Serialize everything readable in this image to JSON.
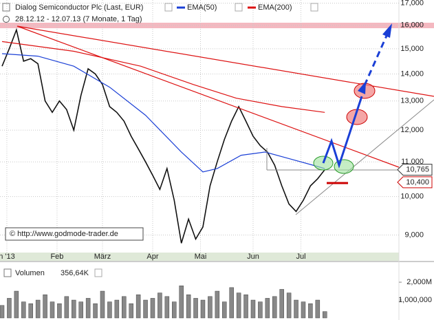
{
  "chart_data": [
    {
      "type": "line",
      "title": "Dialog Semiconductor Plc (Last, EUR)",
      "subtitle": "28.12.12 - 12.07.13 (7 Monate, 1 Tag)",
      "annotation": "© http://www.godmode-trader.de",
      "log_scale": true,
      "grid": true,
      "xlim": [
        0,
        166
      ],
      "xticks": [
        {
          "value": 2,
          "label": "n '13"
        },
        {
          "value": 23,
          "label": "Feb"
        },
        {
          "value": 42,
          "label": "März"
        },
        {
          "value": 63,
          "label": "Apr"
        },
        {
          "value": 83,
          "label": "Mai"
        },
        {
          "value": 105,
          "label": "Jun"
        },
        {
          "value": 125,
          "label": "Jul"
        }
      ],
      "ylim": [
        8.4,
        17.15
      ],
      "yticks": [
        {
          "value": 9,
          "label": "9,000"
        },
        {
          "value": 10,
          "label": "10,000"
        },
        {
          "value": 11,
          "label": "11,000"
        },
        {
          "value": 12,
          "label": "12,000"
        },
        {
          "value": 13,
          "label": "13,000"
        },
        {
          "value": 14,
          "label": "14,000"
        },
        {
          "value": 15,
          "label": "15,000"
        },
        {
          "value": 16,
          "label": "16,000"
        },
        {
          "value": 17,
          "label": "17,000"
        }
      ],
      "price_labels": [
        {
          "value": 10.765,
          "label": "10,765",
          "color": "#333333"
        },
        {
          "value": 10.4,
          "label": "10,400",
          "color": "#cc0000"
        }
      ],
      "series": [
        {
          "name": "Dialog Semiconductor Plc",
          "color": "#111111",
          "x": [
            0,
            3,
            6,
            9,
            12,
            15,
            18,
            21,
            24,
            27,
            30,
            33,
            36,
            39,
            42,
            45,
            48,
            51,
            54,
            57,
            60,
            63,
            66,
            69,
            72,
            75,
            78,
            81,
            84,
            87,
            90,
            93,
            96,
            99,
            102,
            105,
            108,
            111,
            114,
            117,
            120,
            123,
            126,
            129,
            132,
            135
          ],
          "values": [
            14.3,
            15.0,
            15.8,
            14.5,
            14.6,
            14.4,
            13.0,
            12.6,
            13.0,
            12.7,
            12.0,
            13.2,
            14.2,
            14.0,
            13.6,
            12.8,
            12.6,
            12.3,
            11.8,
            11.4,
            11.0,
            10.6,
            10.2,
            10.8,
            9.9,
            8.8,
            9.4,
            8.9,
            9.2,
            10.3,
            11.0,
            11.7,
            12.3,
            12.8,
            12.3,
            11.8,
            11.5,
            11.3,
            10.9,
            10.3,
            9.8,
            9.6,
            9.9,
            10.3,
            10.5,
            10.765
          ]
        },
        {
          "name": "EMA(50)",
          "color": "#1a3fd6",
          "x": [
            0,
            15,
            30,
            45,
            60,
            75,
            84,
            90,
            100,
            110,
            120,
            130,
            135
          ],
          "values": [
            14.8,
            14.7,
            14.3,
            13.5,
            12.5,
            11.3,
            10.7,
            10.8,
            11.2,
            11.3,
            11.1,
            10.9,
            10.8
          ]
        },
        {
          "name": "EMA(200)",
          "color": "#dd1111",
          "x": [
            0,
            30,
            58,
            80,
            98,
            117,
            135
          ],
          "values": [
            15.3,
            14.9,
            14.3,
            13.6,
            13.1,
            12.8,
            12.6
          ]
        }
      ]
    },
    {
      "type": "bar",
      "title": "Volumen",
      "subtitle": "356,64K",
      "xlim": [
        0,
        166
      ],
      "ylim": [
        0,
        2580000
      ],
      "yticks": [
        {
          "value": 2000000,
          "label": "2,000M"
        },
        {
          "value": 1000000,
          "label": "1,000,000"
        }
      ],
      "color": "#888888",
      "x": [
        0,
        3,
        6,
        9,
        12,
        15,
        18,
        21,
        24,
        27,
        30,
        33,
        36,
        39,
        42,
        45,
        48,
        51,
        54,
        57,
        60,
        63,
        66,
        69,
        72,
        75,
        78,
        81,
        84,
        87,
        90,
        93,
        96,
        99,
        102,
        105,
        108,
        111,
        114,
        117,
        120,
        123,
        126,
        129,
        132,
        135
      ],
      "values": [
        700000,
        1100000,
        1500000,
        900000,
        800000,
        1000000,
        1300000,
        900000,
        800000,
        1200000,
        1000000,
        900000,
        1100000,
        800000,
        1500000,
        900000,
        1000000,
        1200000,
        800000,
        1300000,
        1000000,
        1100000,
        1400000,
        1200000,
        900000,
        1800000,
        1300000,
        1100000,
        1000000,
        1200000,
        1500000,
        900000,
        1700000,
        1400000,
        1300000,
        1000000,
        900000,
        1100000,
        1200000,
        1600000,
        1400000,
        1000000,
        900000,
        800000,
        1000000,
        356640
      ]
    }
  ]
}
